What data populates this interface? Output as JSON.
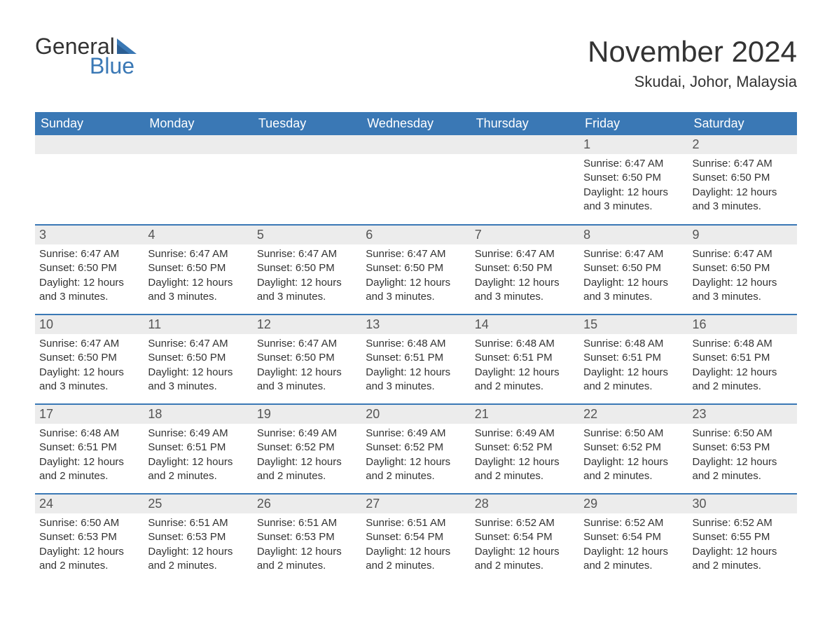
{
  "brand": {
    "word1": "General",
    "word2": "Blue"
  },
  "title": "November 2024",
  "location": "Skudai, Johor, Malaysia",
  "colors": {
    "header_bg": "#3a78b5",
    "header_text": "#ffffff",
    "daynum_bg": "#ececec",
    "text": "#333333",
    "border": "#3a78b5",
    "logo_blue": "#3a78b5"
  },
  "typography": {
    "title_fontsize": 42,
    "location_fontsize": 22,
    "weekday_fontsize": 18,
    "daynum_fontsize": 18,
    "body_fontsize": 15
  },
  "weekdays": [
    "Sunday",
    "Monday",
    "Tuesday",
    "Wednesday",
    "Thursday",
    "Friday",
    "Saturday"
  ],
  "weeks": [
    [
      {
        "day": ""
      },
      {
        "day": ""
      },
      {
        "day": ""
      },
      {
        "day": ""
      },
      {
        "day": ""
      },
      {
        "day": "1",
        "sunrise": "Sunrise: 6:47 AM",
        "sunset": "Sunset: 6:50 PM",
        "daylight1": "Daylight: 12 hours",
        "daylight2": "and 3 minutes."
      },
      {
        "day": "2",
        "sunrise": "Sunrise: 6:47 AM",
        "sunset": "Sunset: 6:50 PM",
        "daylight1": "Daylight: 12 hours",
        "daylight2": "and 3 minutes."
      }
    ],
    [
      {
        "day": "3",
        "sunrise": "Sunrise: 6:47 AM",
        "sunset": "Sunset: 6:50 PM",
        "daylight1": "Daylight: 12 hours",
        "daylight2": "and 3 minutes."
      },
      {
        "day": "4",
        "sunrise": "Sunrise: 6:47 AM",
        "sunset": "Sunset: 6:50 PM",
        "daylight1": "Daylight: 12 hours",
        "daylight2": "and 3 minutes."
      },
      {
        "day": "5",
        "sunrise": "Sunrise: 6:47 AM",
        "sunset": "Sunset: 6:50 PM",
        "daylight1": "Daylight: 12 hours",
        "daylight2": "and 3 minutes."
      },
      {
        "day": "6",
        "sunrise": "Sunrise: 6:47 AM",
        "sunset": "Sunset: 6:50 PM",
        "daylight1": "Daylight: 12 hours",
        "daylight2": "and 3 minutes."
      },
      {
        "day": "7",
        "sunrise": "Sunrise: 6:47 AM",
        "sunset": "Sunset: 6:50 PM",
        "daylight1": "Daylight: 12 hours",
        "daylight2": "and 3 minutes."
      },
      {
        "day": "8",
        "sunrise": "Sunrise: 6:47 AM",
        "sunset": "Sunset: 6:50 PM",
        "daylight1": "Daylight: 12 hours",
        "daylight2": "and 3 minutes."
      },
      {
        "day": "9",
        "sunrise": "Sunrise: 6:47 AM",
        "sunset": "Sunset: 6:50 PM",
        "daylight1": "Daylight: 12 hours",
        "daylight2": "and 3 minutes."
      }
    ],
    [
      {
        "day": "10",
        "sunrise": "Sunrise: 6:47 AM",
        "sunset": "Sunset: 6:50 PM",
        "daylight1": "Daylight: 12 hours",
        "daylight2": "and 3 minutes."
      },
      {
        "day": "11",
        "sunrise": "Sunrise: 6:47 AM",
        "sunset": "Sunset: 6:50 PM",
        "daylight1": "Daylight: 12 hours",
        "daylight2": "and 3 minutes."
      },
      {
        "day": "12",
        "sunrise": "Sunrise: 6:47 AM",
        "sunset": "Sunset: 6:50 PM",
        "daylight1": "Daylight: 12 hours",
        "daylight2": "and 3 minutes."
      },
      {
        "day": "13",
        "sunrise": "Sunrise: 6:48 AM",
        "sunset": "Sunset: 6:51 PM",
        "daylight1": "Daylight: 12 hours",
        "daylight2": "and 3 minutes."
      },
      {
        "day": "14",
        "sunrise": "Sunrise: 6:48 AM",
        "sunset": "Sunset: 6:51 PM",
        "daylight1": "Daylight: 12 hours",
        "daylight2": "and 2 minutes."
      },
      {
        "day": "15",
        "sunrise": "Sunrise: 6:48 AM",
        "sunset": "Sunset: 6:51 PM",
        "daylight1": "Daylight: 12 hours",
        "daylight2": "and 2 minutes."
      },
      {
        "day": "16",
        "sunrise": "Sunrise: 6:48 AM",
        "sunset": "Sunset: 6:51 PM",
        "daylight1": "Daylight: 12 hours",
        "daylight2": "and 2 minutes."
      }
    ],
    [
      {
        "day": "17",
        "sunrise": "Sunrise: 6:48 AM",
        "sunset": "Sunset: 6:51 PM",
        "daylight1": "Daylight: 12 hours",
        "daylight2": "and 2 minutes."
      },
      {
        "day": "18",
        "sunrise": "Sunrise: 6:49 AM",
        "sunset": "Sunset: 6:51 PM",
        "daylight1": "Daylight: 12 hours",
        "daylight2": "and 2 minutes."
      },
      {
        "day": "19",
        "sunrise": "Sunrise: 6:49 AM",
        "sunset": "Sunset: 6:52 PM",
        "daylight1": "Daylight: 12 hours",
        "daylight2": "and 2 minutes."
      },
      {
        "day": "20",
        "sunrise": "Sunrise: 6:49 AM",
        "sunset": "Sunset: 6:52 PM",
        "daylight1": "Daylight: 12 hours",
        "daylight2": "and 2 minutes."
      },
      {
        "day": "21",
        "sunrise": "Sunrise: 6:49 AM",
        "sunset": "Sunset: 6:52 PM",
        "daylight1": "Daylight: 12 hours",
        "daylight2": "and 2 minutes."
      },
      {
        "day": "22",
        "sunrise": "Sunrise: 6:50 AM",
        "sunset": "Sunset: 6:52 PM",
        "daylight1": "Daylight: 12 hours",
        "daylight2": "and 2 minutes."
      },
      {
        "day": "23",
        "sunrise": "Sunrise: 6:50 AM",
        "sunset": "Sunset: 6:53 PM",
        "daylight1": "Daylight: 12 hours",
        "daylight2": "and 2 minutes."
      }
    ],
    [
      {
        "day": "24",
        "sunrise": "Sunrise: 6:50 AM",
        "sunset": "Sunset: 6:53 PM",
        "daylight1": "Daylight: 12 hours",
        "daylight2": "and 2 minutes."
      },
      {
        "day": "25",
        "sunrise": "Sunrise: 6:51 AM",
        "sunset": "Sunset: 6:53 PM",
        "daylight1": "Daylight: 12 hours",
        "daylight2": "and 2 minutes."
      },
      {
        "day": "26",
        "sunrise": "Sunrise: 6:51 AM",
        "sunset": "Sunset: 6:53 PM",
        "daylight1": "Daylight: 12 hours",
        "daylight2": "and 2 minutes."
      },
      {
        "day": "27",
        "sunrise": "Sunrise: 6:51 AM",
        "sunset": "Sunset: 6:54 PM",
        "daylight1": "Daylight: 12 hours",
        "daylight2": "and 2 minutes."
      },
      {
        "day": "28",
        "sunrise": "Sunrise: 6:52 AM",
        "sunset": "Sunset: 6:54 PM",
        "daylight1": "Daylight: 12 hours",
        "daylight2": "and 2 minutes."
      },
      {
        "day": "29",
        "sunrise": "Sunrise: 6:52 AM",
        "sunset": "Sunset: 6:54 PM",
        "daylight1": "Daylight: 12 hours",
        "daylight2": "and 2 minutes."
      },
      {
        "day": "30",
        "sunrise": "Sunrise: 6:52 AM",
        "sunset": "Sunset: 6:55 PM",
        "daylight1": "Daylight: 12 hours",
        "daylight2": "and 2 minutes."
      }
    ]
  ]
}
